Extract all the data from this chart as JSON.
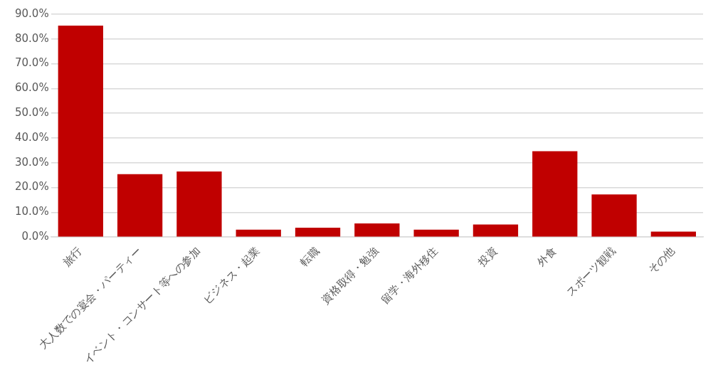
{
  "chart_data": {
    "type": "bar",
    "categories": [
      "旅行",
      "大人数での宴会・パーティー",
      "イベント・コンサート等への参加",
      "ビジネス・起業",
      "転職",
      "資格取得・勉強",
      "留学・海外移住",
      "投資",
      "外食",
      "スポーツ観戦",
      "その他"
    ],
    "values": [
      85.4,
      25.4,
      26.5,
      3.0,
      3.8,
      5.5,
      3.0,
      5.1,
      34.7,
      17.2,
      2.2
    ],
    "color": "#c00000",
    "ylim": [
      0,
      90
    ],
    "yticks": [
      {
        "value": 0,
        "label": "0.0%"
      },
      {
        "value": 10,
        "label": "10.0%"
      },
      {
        "value": 20,
        "label": "20.0%"
      },
      {
        "value": 30,
        "label": "30.0%"
      },
      {
        "value": 40,
        "label": "40.0%"
      },
      {
        "value": 50,
        "label": "50.0%"
      },
      {
        "value": 60,
        "label": "60.0%"
      },
      {
        "value": 70,
        "label": "70.0%"
      },
      {
        "value": 80,
        "label": "80.0%"
      },
      {
        "value": 90,
        "label": "90.0%"
      }
    ],
    "grid": "y"
  }
}
